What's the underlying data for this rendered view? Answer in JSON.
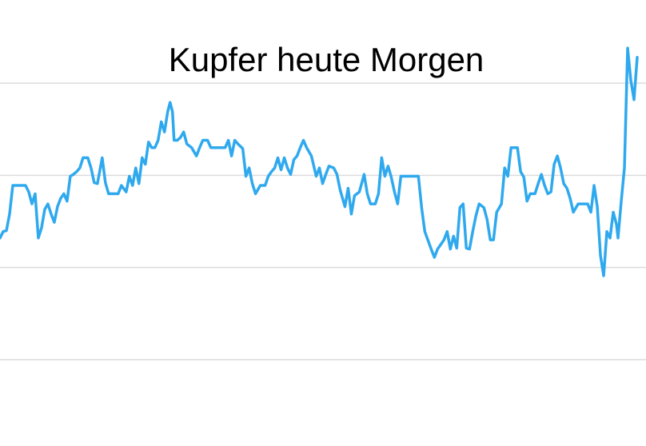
{
  "chart_data": {
    "type": "line",
    "title": "Kupfer heute Morgen",
    "color": "#2fa9ee",
    "grid": true,
    "xlim": [
      0,
      798
    ],
    "ylim": [
      -1,
      4
    ],
    "yticks": [
      0,
      1,
      2,
      3
    ],
    "x": [
      0,
      4,
      8,
      12,
      16,
      24,
      32,
      36,
      40,
      44,
      48,
      52,
      56,
      60,
      64,
      68,
      72,
      76,
      80,
      84,
      88,
      92,
      96,
      100,
      104,
      110,
      114,
      118,
      122,
      128,
      132,
      136,
      142,
      148,
      152,
      158,
      162,
      166,
      170,
      174,
      178,
      182,
      186,
      190,
      194,
      198,
      202,
      206,
      210,
      213,
      216,
      218,
      222,
      226,
      230,
      234,
      240,
      246,
      250,
      254,
      260,
      264,
      270,
      276,
      282,
      286,
      290,
      294,
      298,
      304,
      308,
      312,
      316,
      320,
      326,
      332,
      336,
      340,
      344,
      348,
      352,
      356,
      360,
      364,
      368,
      372,
      376,
      380,
      384,
      390,
      396,
      400,
      404,
      408,
      412,
      418,
      422,
      426,
      432,
      436,
      440,
      444,
      450,
      456,
      460,
      464,
      470,
      474,
      478,
      482,
      486,
      490,
      494,
      498,
      502,
      510,
      518,
      524,
      528,
      532,
      540,
      544,
      548,
      556,
      560,
      564,
      568,
      572,
      576,
      580,
      584,
      588,
      592,
      596,
      600,
      606,
      610,
      614,
      618,
      622,
      628,
      632,
      636,
      640,
      648,
      652,
      656,
      660,
      664,
      670,
      674,
      678,
      682,
      686,
      690,
      694,
      698,
      702,
      706,
      710,
      714,
      718,
      724,
      730,
      736,
      740,
      744,
      748,
      752,
      756,
      760,
      764,
      768,
      772,
      774,
      778,
      782,
      786,
      790,
      794,
      798
    ],
    "values": [
      1.32,
      1.39,
      1.4,
      1.58,
      1.89,
      1.89,
      1.89,
      1.82,
      1.69,
      1.8,
      1.32,
      1.43,
      1.63,
      1.69,
      1.58,
      1.49,
      1.66,
      1.75,
      1.8,
      1.72,
      1.99,
      2.01,
      2.04,
      2.08,
      2.19,
      2.19,
      2.08,
      1.92,
      1.91,
      2.19,
      1.92,
      1.8,
      1.8,
      1.8,
      1.89,
      1.82,
      1.99,
      1.89,
      2.08,
      1.91,
      2.19,
      2.12,
      2.36,
      2.3,
      2.3,
      2.38,
      2.58,
      2.47,
      2.69,
      2.79,
      2.69,
      2.38,
      2.38,
      2.41,
      2.47,
      2.34,
      2.3,
      2.21,
      2.3,
      2.38,
      2.38,
      2.3,
      2.3,
      2.3,
      2.3,
      2.38,
      2.21,
      2.38,
      2.34,
      2.29,
      1.99,
      2.08,
      1.91,
      1.8,
      1.89,
      1.89,
      1.99,
      2.04,
      2.08,
      2.19,
      2.06,
      2.19,
      2.08,
      2.01,
      2.17,
      2.21,
      2.3,
      2.38,
      2.3,
      2.21,
      1.99,
      2.08,
      1.91,
      2.01,
      2.1,
      2.08,
      2.01,
      1.84,
      1.66,
      1.86,
      1.58,
      1.78,
      1.82,
      2.01,
      1.8,
      1.69,
      1.69,
      1.8,
      2.19,
      1.99,
      2.1,
      1.98,
      1.82,
      1.69,
      1.99,
      1.99,
      1.99,
      1.99,
      1.65,
      1.39,
      1.2,
      1.11,
      1.2,
      1.3,
      1.39,
      1.2,
      1.34,
      1.21,
      1.65,
      1.69,
      1.21,
      1.2,
      1.39,
      1.56,
      1.69,
      1.65,
      1.52,
      1.3,
      1.3,
      1.6,
      1.69,
      2.08,
      1.99,
      2.3,
      2.3,
      2.04,
      1.98,
      1.72,
      1.8,
      1.8,
      1.91,
      2.01,
      1.89,
      1.8,
      1.82,
      2.12,
      2.21,
      2.08,
      1.91,
      1.86,
      1.75,
      1.6,
      1.69,
      1.69,
      1.69,
      1.6,
      1.89,
      1.66,
      1.13,
      0.91,
      1.39,
      1.32,
      1.6,
      1.47,
      1.32,
      1.72,
      2.08,
      3.38,
      3.03,
      2.82,
      3.28
    ]
  }
}
